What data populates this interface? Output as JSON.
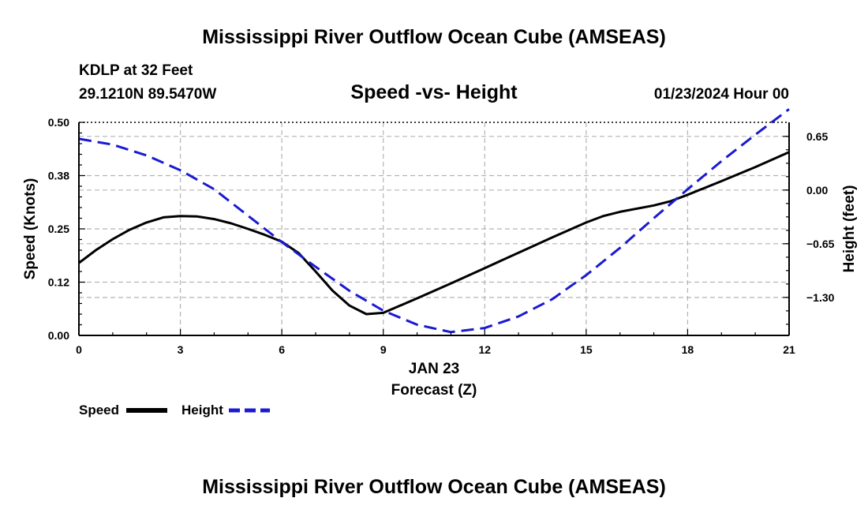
{
  "titles": {
    "main": "Mississippi River Outflow Ocean Cube (AMSEAS)",
    "footer": "Mississippi River Outflow Ocean Cube (AMSEAS)"
  },
  "info": {
    "station": "KDLP at 32 Feet",
    "coords": "29.1210N  89.5470W",
    "datetime": "01/23/2024 Hour 00"
  },
  "colors": {
    "speed": "#000000",
    "height": "#1a1ad2",
    "grid": "#b4b4b4"
  },
  "chart_data": {
    "type": "line",
    "title": "Speed -vs- Height",
    "xlabel": "Forecast (Z)",
    "x_sublabel": "JAN 23",
    "ylabel": "Speed (Knots)",
    "y2label": "Height (feet)",
    "xlim": [
      0,
      21
    ],
    "ylim": [
      0,
      0.5
    ],
    "y2lim": [
      -1.76,
      0.82
    ],
    "x_ticks": [
      0,
      3,
      6,
      9,
      12,
      15,
      18,
      21
    ],
    "x_tick_labels": [
      "0",
      "3",
      "6",
      "9",
      "12",
      "15",
      "18",
      "21"
    ],
    "y_ticks": [
      0,
      0.125,
      0.25,
      0.375,
      0.5
    ],
    "y_tick_labels": [
      "0.00",
      "0.12",
      "0.25",
      "0.38",
      "0.50"
    ],
    "y2_ticks": [
      -1.3,
      -0.65,
      0,
      0.65
    ],
    "y2_tick_labels": [
      "−1.30",
      "−0.65",
      "0.00",
      "0.65"
    ],
    "series": [
      {
        "name": "Speed",
        "axis": "left",
        "style": "solid",
        "x": [
          0,
          0.5,
          1,
          1.5,
          2,
          2.5,
          3,
          3.5,
          4,
          4.5,
          5,
          5.5,
          6,
          6.5,
          7,
          7.5,
          8,
          8.5,
          9,
          10,
          11,
          12,
          13,
          14,
          15,
          15.5,
          16,
          17,
          17.5,
          18,
          19,
          20,
          21
        ],
        "values": [
          0.17,
          0.2,
          0.226,
          0.248,
          0.265,
          0.277,
          0.28,
          0.279,
          0.273,
          0.263,
          0.25,
          0.236,
          0.22,
          0.193,
          0.15,
          0.105,
          0.07,
          0.05,
          0.053,
          0.087,
          0.122,
          0.158,
          0.194,
          0.23,
          0.265,
          0.28,
          0.29,
          0.305,
          0.315,
          0.33,
          0.362,
          0.395,
          0.43
        ]
      },
      {
        "name": "Height",
        "axis": "right",
        "style": "dashed",
        "x": [
          0,
          1,
          2,
          3,
          4,
          5,
          6,
          7,
          8,
          9,
          10,
          11,
          12,
          13,
          14,
          15,
          16,
          17,
          18,
          19,
          20,
          21
        ],
        "values": [
          0.62,
          0.55,
          0.42,
          0.24,
          0.01,
          -0.31,
          -0.63,
          -0.93,
          -1.22,
          -1.46,
          -1.63,
          -1.72,
          -1.67,
          -1.53,
          -1.32,
          -1.03,
          -0.7,
          -0.34,
          0.01,
          0.35,
          0.67,
          0.98
        ]
      }
    ],
    "legend": [
      {
        "name": "Speed"
      },
      {
        "name": "Height"
      }
    ]
  }
}
